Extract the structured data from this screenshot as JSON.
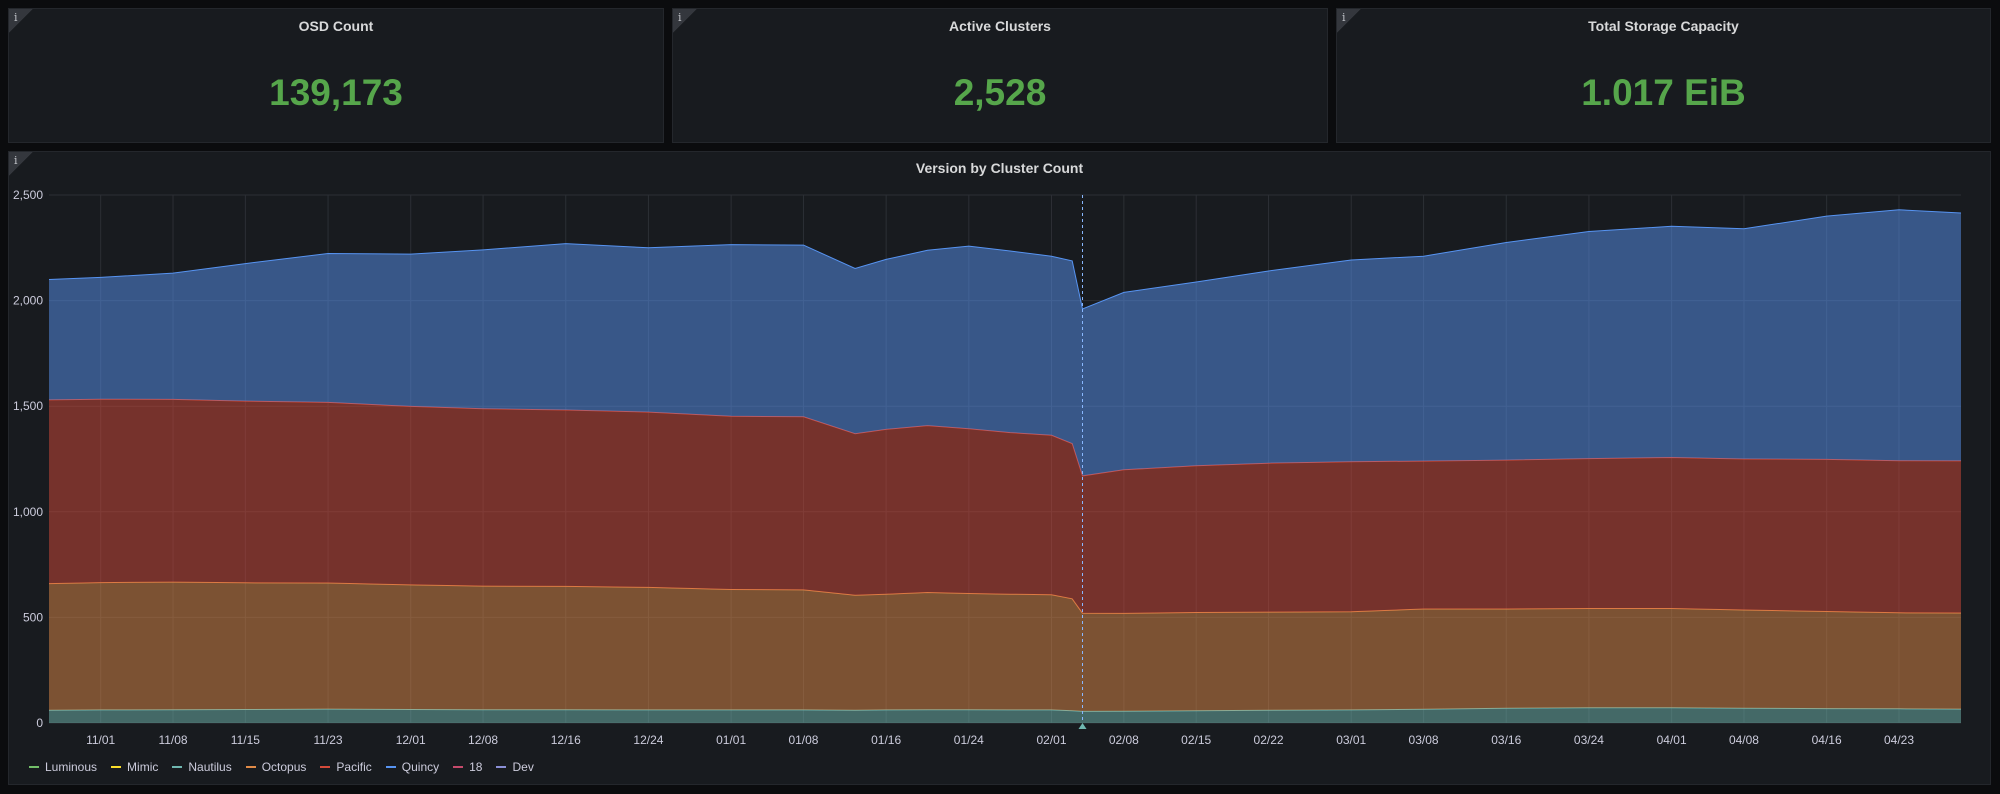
{
  "stats": [
    {
      "title": "OSD Count",
      "value": "139,173"
    },
    {
      "title": "Active Clusters",
      "value": "2,528"
    },
    {
      "title": "Total Storage Capacity",
      "value": "1.017 EiB"
    }
  ],
  "info_glyph": "i",
  "chart_data": {
    "type": "area",
    "stacked": true,
    "title": "Version by Cluster Count",
    "ylim": [
      0,
      2500
    ],
    "yticks": [
      0,
      500,
      1000,
      1500,
      2000,
      2500
    ],
    "ytick_labels": [
      "0",
      "500",
      "1,000",
      "1,500",
      "2,000",
      "2,500"
    ],
    "x_range": [
      "10/27",
      "04/29"
    ],
    "xticks": [
      "11/01",
      "11/08",
      "11/15",
      "11/23",
      "12/01",
      "12/08",
      "12/16",
      "12/24",
      "01/01",
      "01/08",
      "01/16",
      "01/24",
      "02/01",
      "02/08",
      "02/15",
      "02/22",
      "03/01",
      "03/08",
      "03/16",
      "03/24",
      "04/01",
      "04/08",
      "04/16",
      "04/23"
    ],
    "x": [
      "10/27",
      "11/01",
      "11/08",
      "11/15",
      "11/23",
      "12/01",
      "12/08",
      "12/16",
      "12/24",
      "01/01",
      "01/08",
      "01/13",
      "01/16",
      "01/20",
      "01/24",
      "01/28",
      "02/01",
      "02/03",
      "02/04",
      "02/08",
      "02/15",
      "02/22",
      "03/01",
      "03/08",
      "03/16",
      "03/24",
      "04/01",
      "04/08",
      "04/16",
      "04/23",
      "04/29"
    ],
    "crosshair_x": "02/04",
    "grid": true,
    "legend_position": "bottom-left",
    "series": [
      {
        "name": "Luminous",
        "color": "#73bf69",
        "values": [
          0,
          0,
          0,
          0,
          0,
          0,
          0,
          0,
          0,
          0,
          0,
          0,
          0,
          0,
          0,
          0,
          0,
          0,
          0,
          0,
          0,
          0,
          0,
          0,
          0,
          0,
          0,
          0,
          0,
          0,
          0
        ]
      },
      {
        "name": "Mimic",
        "color": "#fade2a",
        "values": [
          0,
          0,
          0,
          0,
          0,
          0,
          0,
          0,
          0,
          0,
          0,
          0,
          0,
          0,
          0,
          0,
          0,
          0,
          0,
          0,
          0,
          0,
          0,
          0,
          0,
          0,
          0,
          0,
          0,
          0,
          0
        ]
      },
      {
        "name": "Nautilus",
        "color": "#6fb7b0",
        "values": [
          60,
          62,
          63,
          64,
          66,
          64,
          63,
          63,
          62,
          62,
          62,
          60,
          62,
          63,
          63,
          62,
          62,
          58,
          55,
          56,
          58,
          60,
          62,
          65,
          70,
          72,
          72,
          70,
          68,
          67,
          66
        ]
      },
      {
        "name": "Octopus",
        "color": "#e08a47",
        "values": [
          600,
          603,
          604,
          600,
          597,
          590,
          585,
          584,
          580,
          570,
          568,
          545,
          548,
          555,
          550,
          548,
          545,
          530,
          465,
          463,
          465,
          465,
          465,
          475,
          470,
          470,
          470,
          465,
          460,
          455,
          455
        ]
      },
      {
        "name": "Pacific",
        "color": "#d44a3a",
        "values": [
          870,
          868,
          865,
          860,
          855,
          845,
          840,
          835,
          830,
          820,
          820,
          765,
          780,
          790,
          780,
          765,
          755,
          735,
          650,
          680,
          695,
          705,
          710,
          700,
          705,
          710,
          715,
          715,
          720,
          720,
          720
        ]
      },
      {
        "name": "Quincy",
        "color": "#5794f2",
        "values": [
          570,
          577,
          598,
          651,
          705,
          721,
          752,
          788,
          778,
          813,
          813,
          782,
          805,
          830,
          865,
          860,
          848,
          865,
          790,
          840,
          870,
          910,
          955,
          970,
          1030,
          1075,
          1095,
          1090,
          1152,
          1188,
          1174
        ]
      },
      {
        "name": "18",
        "color": "#c54a6b",
        "values": [
          0,
          0,
          0,
          0,
          0,
          0,
          0,
          0,
          0,
          0,
          0,
          0,
          0,
          0,
          0,
          0,
          0,
          0,
          0,
          0,
          0,
          0,
          0,
          0,
          0,
          0,
          0,
          0,
          0,
          0,
          0
        ]
      },
      {
        "name": "Dev",
        "color": "#8a8fd6",
        "values": [
          0,
          0,
          0,
          0,
          0,
          0,
          0,
          0,
          0,
          0,
          0,
          0,
          0,
          0,
          0,
          0,
          0,
          0,
          0,
          0,
          0,
          0,
          0,
          0,
          0,
          0,
          0,
          0,
          0,
          0,
          0
        ]
      }
    ]
  }
}
